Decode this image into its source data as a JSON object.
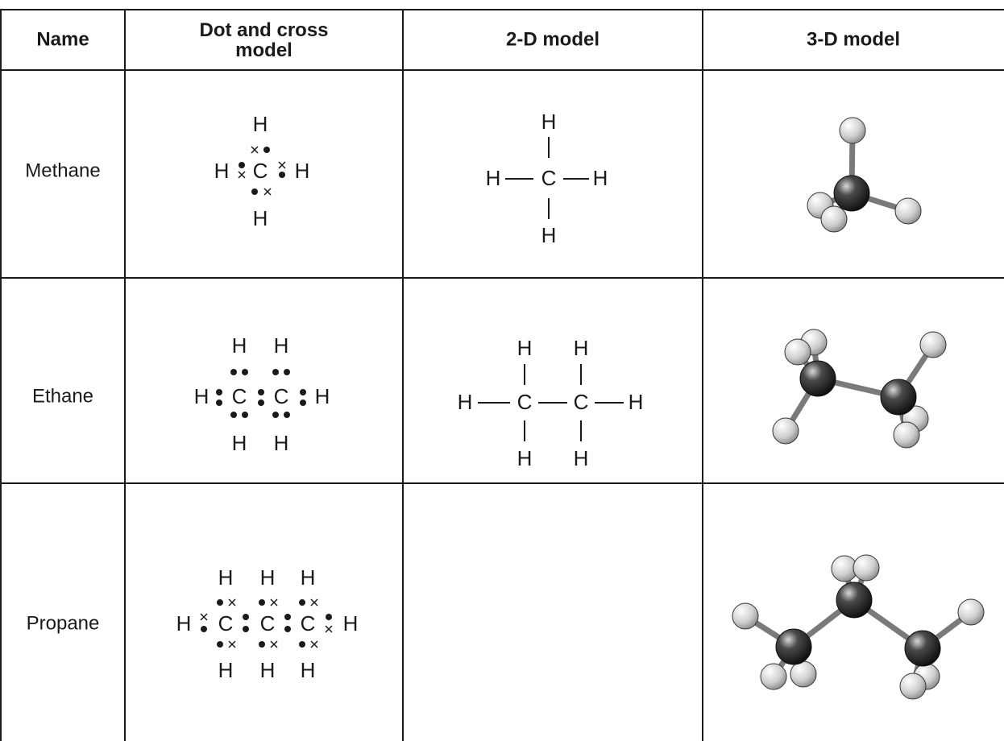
{
  "table": {
    "header": [
      "Name",
      "Dot and cross model",
      "2-D model",
      "3-D model"
    ],
    "rows": [
      {
        "name": "Methane",
        "dot_and_cross": [
          "H",
          "H",
          "C",
          "H",
          "H"
        ],
        "model_2d": [
          "H",
          "H",
          "C",
          "H",
          "H"
        ]
      },
      {
        "name": "Ethane",
        "dot_and_cross": [
          "H",
          "H",
          "H",
          "C",
          "C",
          "H",
          "H",
          "H"
        ],
        "model_2d": [
          "H",
          "H",
          "H",
          "C",
          "C",
          "H",
          "H",
          "H"
        ]
      },
      {
        "name": "Propane",
        "dot_and_cross": [
          "H",
          "H",
          "H",
          "H",
          "C",
          "C",
          "C",
          "H",
          "H",
          "H",
          "H"
        ]
      }
    ]
  }
}
